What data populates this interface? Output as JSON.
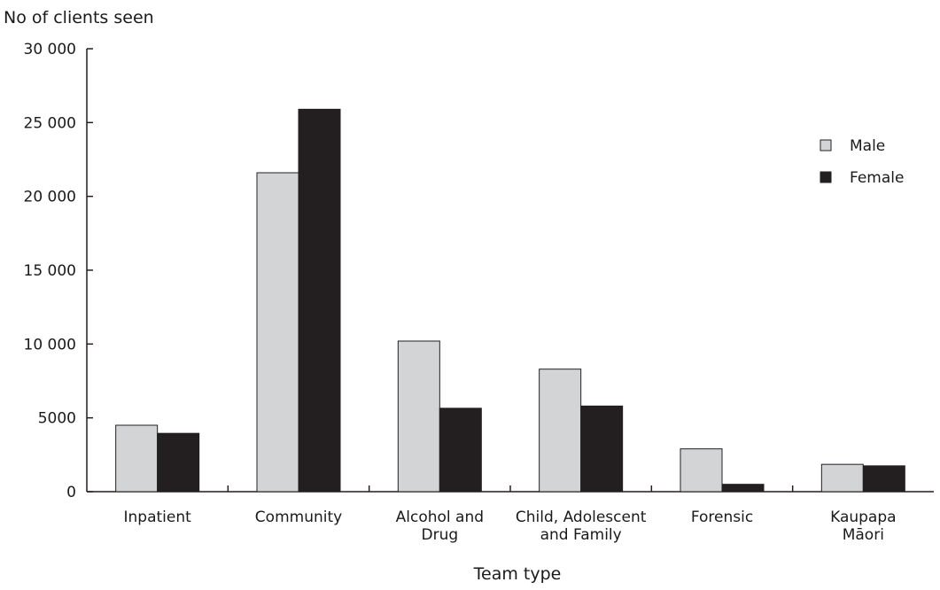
{
  "chart_data": {
    "type": "bar",
    "title": "",
    "ylabel": "No of clients seen",
    "xlabel": "Team type",
    "ylim": [
      0,
      30000
    ],
    "yticks": [
      0,
      5000,
      10000,
      15000,
      20000,
      25000,
      30000
    ],
    "ytick_labels": [
      "0",
      "5000",
      "10 000",
      "15 000",
      "20 000",
      "25 000",
      "30 000"
    ],
    "categories": [
      [
        "Inpatient"
      ],
      [
        "Community"
      ],
      [
        "Alcohol and",
        "Drug"
      ],
      [
        "Child, Adolescent",
        "and Family"
      ],
      [
        "Forensic"
      ],
      [
        "Kaupapa",
        "Māori"
      ]
    ],
    "series": [
      {
        "name": "Male",
        "color": "#d3d4d6",
        "values": [
          4500,
          21600,
          10200,
          8300,
          2900,
          1850
        ]
      },
      {
        "name": "Female",
        "color": "#231f20",
        "values": [
          3950,
          25900,
          5650,
          5800,
          500,
          1750
        ]
      }
    ],
    "legend_position": "top-right",
    "grid": false
  }
}
